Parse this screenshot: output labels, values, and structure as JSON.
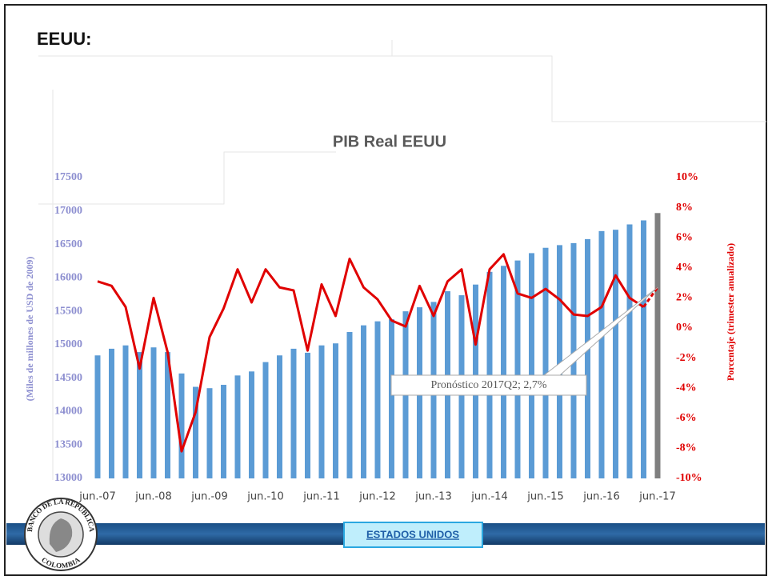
{
  "header": "EEUU:",
  "chart_data": {
    "type": "bar-line",
    "title": "PIB Real EEUU",
    "ylabel": "(Miles de millones de USD de 2009)",
    "y2label": "Porcentaje (trimester anualizado)",
    "categories": [
      "jun.-07",
      null,
      null,
      null,
      "jun.-08",
      null,
      null,
      null,
      "jun.-09",
      null,
      null,
      null,
      "jun.-10",
      null,
      null,
      null,
      "jun.-11",
      null,
      null,
      null,
      "jun.-12",
      null,
      null,
      null,
      "jun.-13",
      null,
      null,
      null,
      "jun.-14",
      null,
      null,
      null,
      "jun.-15",
      null,
      null,
      null,
      "jun.-16",
      null,
      null,
      null,
      "jun.-17"
    ],
    "series": [
      {
        "type": "bar",
        "color": "#5b9bd5",
        "values": [
          14840,
          14940,
          14990,
          14890,
          14960,
          14890,
          14570,
          14370,
          14350,
          14400,
          14540,
          14600,
          14740,
          14840,
          14940,
          14880,
          14990,
          15020,
          15190,
          15290,
          15350,
          15380,
          15500,
          15560,
          15640,
          15800,
          15740,
          15900,
          16090,
          16180,
          16260,
          16370,
          16450,
          16490,
          16520,
          16580,
          16700,
          16720,
          16800,
          16860,
          null
        ]
      },
      {
        "type": "bar",
        "color": "#7f7f7f",
        "values": [
          null,
          null,
          null,
          null,
          null,
          null,
          null,
          null,
          null,
          null,
          null,
          null,
          null,
          null,
          null,
          null,
          null,
          null,
          null,
          null,
          null,
          null,
          null,
          null,
          null,
          null,
          null,
          null,
          null,
          null,
          null,
          null,
          null,
          null,
          null,
          null,
          null,
          null,
          null,
          null,
          16970
        ]
      },
      {
        "type": "line",
        "axis": "y2",
        "color": "#e00000",
        "dash_last_segment": true,
        "values": [
          3.1,
          2.8,
          1.4,
          -2.7,
          2.0,
          -1.6,
          -8.2,
          -5.6,
          -0.6,
          1.3,
          3.9,
          1.7,
          3.9,
          2.7,
          2.5,
          -1.5,
          2.9,
          0.8,
          4.6,
          2.7,
          1.9,
          0.5,
          0.1,
          2.8,
          0.8,
          3.1,
          3.9,
          -1.1,
          3.9,
          4.9,
          2.3,
          2.0,
          2.6,
          1.9,
          0.9,
          0.8,
          1.4,
          3.5,
          2.0,
          1.4,
          2.7
        ]
      }
    ],
    "ylim": [
      13000,
      17500
    ],
    "yticks": [
      13000,
      13500,
      14000,
      14500,
      15000,
      15500,
      16000,
      16500,
      17000,
      17500
    ],
    "y2lim": [
      -10,
      10
    ],
    "y2ticks": [
      {
        "value": -10,
        "label": "-10%"
      },
      {
        "value": -8,
        "label": "-8%"
      },
      {
        "value": -6,
        "label": "-6%"
      },
      {
        "value": -4,
        "label": "-4%"
      },
      {
        "value": -2,
        "label": "-2%"
      },
      {
        "value": 0,
        "label": "0%"
      },
      {
        "value": 2,
        "label": "2%"
      },
      {
        "value": 4,
        "label": "4%"
      },
      {
        "value": 6,
        "label": "6%"
      },
      {
        "value": 8,
        "label": "8%"
      },
      {
        "value": 10,
        "label": "10%"
      }
    ],
    "annotation": "Pronóstico 2017Q2; 2,7%"
  },
  "logo_text": [
    "BANCO DE LA REPÚBLICA",
    "COLOMBIA"
  ],
  "footer_button": "ESTADOS UNIDOS"
}
